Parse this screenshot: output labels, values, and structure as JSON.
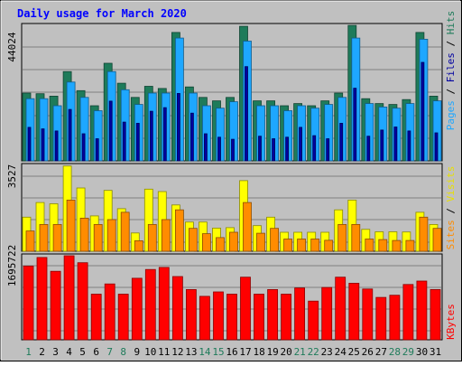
{
  "chart_data": [
    {
      "type": "bar",
      "title": "Daily usage for March 2020",
      "ytick": "44024",
      "ylabel": [
        "Pages",
        "Files",
        "Hits"
      ],
      "categories": [
        "1",
        "2",
        "3",
        "4",
        "5",
        "6",
        "7",
        "8",
        "9",
        "10",
        "11",
        "12",
        "13",
        "14",
        "15",
        "16",
        "17",
        "18",
        "19",
        "20",
        "21",
        "22",
        "23",
        "24",
        "25",
        "26",
        "27",
        "28",
        "29",
        "30",
        "31"
      ],
      "weekend_days": [
        "1",
        "7",
        "8",
        "14",
        "15",
        "21",
        "22",
        "28",
        "29"
      ],
      "ylim": [
        0,
        44024
      ],
      "series": [
        {
          "name": "Hits",
          "color": "#1e7b5a",
          "values": [
            22000,
            21800,
            21000,
            29000,
            22800,
            17900,
            31700,
            25200,
            20600,
            24200,
            23500,
            41700,
            24000,
            20600,
            19500,
            20600,
            43700,
            19500,
            19500,
            17900,
            18600,
            17900,
            19500,
            22000,
            44000,
            20200,
            18600,
            18300,
            19900,
            41700,
            21000
          ]
        },
        {
          "name": "Files",
          "color": "#1ea7ff",
          "values": [
            20200,
            20200,
            17900,
            25600,
            20600,
            16300,
            29000,
            23100,
            18300,
            22000,
            22000,
            39900,
            22000,
            17900,
            17100,
            19200,
            38900,
            17900,
            17900,
            16300,
            17900,
            17100,
            18300,
            20600,
            39900,
            18600,
            17500,
            17100,
            18600,
            39500,
            19500
          ]
        },
        {
          "name": "Pages",
          "color": "#0000a0",
          "values": [
            10900,
            10400,
            9700,
            16700,
            8800,
            7200,
            19400,
            12600,
            12200,
            16100,
            17300,
            21900,
            15500,
            8800,
            7700,
            7000,
            30600,
            8000,
            7200,
            7700,
            10900,
            8200,
            7200,
            12200,
            23600,
            8000,
            10000,
            11000,
            9700,
            32000,
            9100
          ]
        }
      ]
    },
    {
      "type": "bar",
      "ytick": "3527",
      "ylabel": [
        "Sites",
        "Visits"
      ],
      "categories": [
        "1",
        "2",
        "3",
        "4",
        "5",
        "6",
        "7",
        "8",
        "9",
        "10",
        "11",
        "12",
        "13",
        "14",
        "15",
        "16",
        "17",
        "18",
        "19",
        "20",
        "21",
        "22",
        "23",
        "24",
        "25",
        "26",
        "27",
        "28",
        "29",
        "30",
        "31"
      ],
      "ylim": [
        0,
        3527
      ],
      "series": [
        {
          "name": "Visits",
          "color": "#ffff00",
          "values": [
            1400,
            2000,
            1950,
            3500,
            2600,
            1450,
            2500,
            1750,
            750,
            2550,
            2450,
            1900,
            1200,
            1200,
            950,
            970,
            2900,
            1050,
            1400,
            780,
            780,
            780,
            780,
            1700,
            2100,
            900,
            800,
            800,
            790,
            1600,
            1100
          ]
        },
        {
          "name": "Sites",
          "color": "#ff8c00",
          "values": [
            830,
            1100,
            1100,
            2100,
            1360,
            1100,
            1300,
            1600,
            430,
            1100,
            1300,
            1700,
            940,
            720,
            560,
            780,
            2000,
            740,
            940,
            500,
            500,
            500,
            450,
            1100,
            1100,
            500,
            480,
            440,
            440,
            1400,
            940
          ]
        }
      ]
    },
    {
      "type": "bar",
      "ytick": "1695722",
      "ylabel": "KBytes",
      "categories": [
        "1",
        "2",
        "3",
        "4",
        "5",
        "6",
        "7",
        "8",
        "9",
        "10",
        "11",
        "12",
        "13",
        "14",
        "15",
        "16",
        "17",
        "18",
        "19",
        "20",
        "21",
        "22",
        "23",
        "24",
        "25",
        "26",
        "27",
        "28",
        "29",
        "30",
        "31"
      ],
      "ylim": [
        0,
        1695722
      ],
      "series": [
        {
          "name": "KBytes",
          "color": "#ff0000",
          "values": [
            1487000,
            1661000,
            1383000,
            1700000,
            1556000,
            920000,
            1127000,
            920000,
            1242000,
            1419000,
            1460000,
            1277000,
            1014000,
            877000,
            967000,
            921000,
            1263000,
            921000,
            1014000,
            921000,
            1046000,
            780000,
            1055000,
            1263000,
            1141000,
            1025000,
            856000,
            899000,
            1115000,
            1186000,
            1014000
          ]
        }
      ]
    }
  ]
}
